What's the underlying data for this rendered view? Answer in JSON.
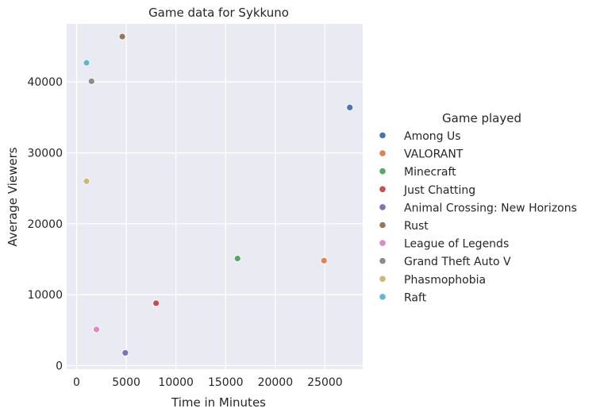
{
  "chart_data": {
    "type": "scatter",
    "title": "Game data for Sykkuno",
    "xlabel": "Time in Minutes",
    "ylabel": "Average Viewers",
    "xlim": [
      -1000,
      28800
    ],
    "ylim": [
      -500,
      48200
    ],
    "xticks": [
      0,
      5000,
      10000,
      15000,
      20000,
      25000
    ],
    "yticks": [
      0,
      10000,
      20000,
      30000,
      40000
    ],
    "grid": true,
    "legend": {
      "title": "Game played",
      "placement": "right"
    },
    "series": [
      {
        "name": "Among Us",
        "color": "#4c72b0",
        "x": 27500,
        "y": 36400
      },
      {
        "name": "VALORANT",
        "color": "#dd8452",
        "x": 24900,
        "y": 14800
      },
      {
        "name": "Minecraft",
        "color": "#55a868",
        "x": 16200,
        "y": 15100
      },
      {
        "name": "Just Chatting",
        "color": "#c44e52",
        "x": 8000,
        "y": 8800
      },
      {
        "name": "Animal Crossing: New Horizons",
        "color": "#8172b3",
        "x": 4900,
        "y": 1800
      },
      {
        "name": "Rust",
        "color": "#937860",
        "x": 4600,
        "y": 46400
      },
      {
        "name": "League of Legends",
        "color": "#da8bc3",
        "x": 2000,
        "y": 5100
      },
      {
        "name": "Grand Theft Auto V",
        "color": "#8c8c8c",
        "x": 1500,
        "y": 40100
      },
      {
        "name": "Phasmophobia",
        "color": "#ccb974",
        "x": 1000,
        "y": 26000
      },
      {
        "name": "Raft",
        "color": "#64b5cd",
        "x": 1000,
        "y": 42700
      }
    ]
  }
}
